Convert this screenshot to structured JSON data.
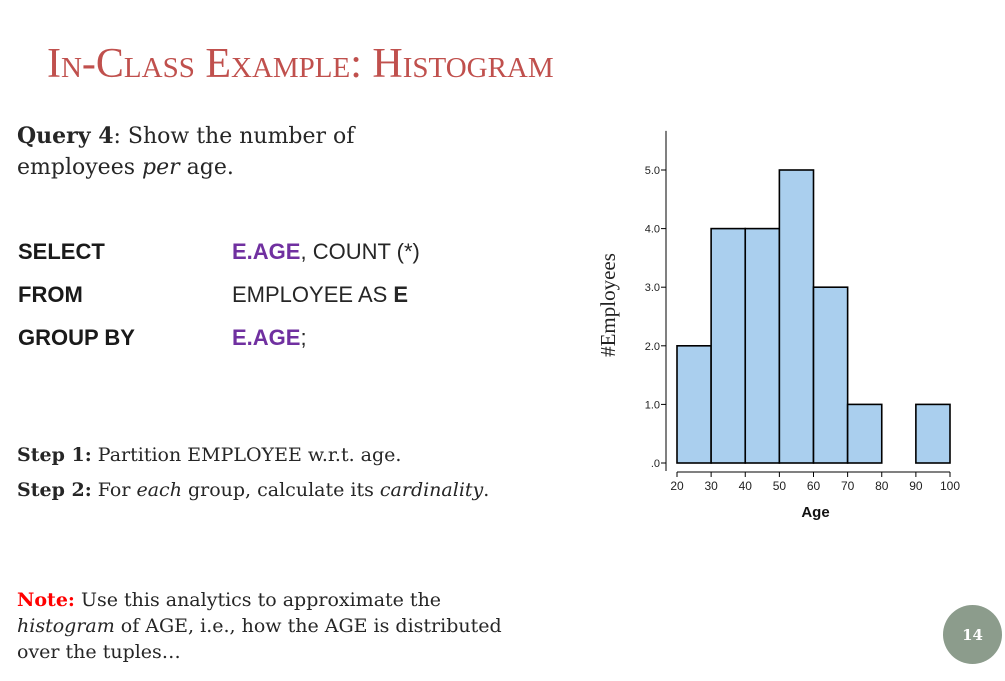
{
  "slide": {
    "title": "In-Class Example: Histogram",
    "query": {
      "label": "Query 4",
      "text_before": ": Show the number of employees ",
      "text_em": "per",
      "text_after": " age."
    },
    "sql": {
      "select_kw": "SELECT",
      "select_attr": "E.AGE",
      "select_rest": ", COUNT (*)",
      "from_kw": "FROM",
      "from_table": "EMPLOYEE AS ",
      "from_alias": "E",
      "group_kw": "GROUP BY",
      "group_attr": "E.AGE",
      "group_end": ";"
    },
    "step1": {
      "label": "Step 1:",
      "text": " Partition EMPLOYEE w.r.t. age."
    },
    "step2": {
      "label": "Step 2:",
      "text_before": " For ",
      "text_em1": "each",
      "text_mid": " group, calculate its ",
      "text_em2": "cardinality",
      "text_after": "."
    },
    "note": {
      "label": "Note:",
      "text_before": " Use this analytics to approximate the ",
      "text_em": "histogram",
      "text_after": " of AGE, i.e., how the AGE is distributed over the tuples…"
    },
    "page_number": "14"
  },
  "chart_data": {
    "type": "bar",
    "bins": [
      [
        20,
        30
      ],
      [
        30,
        40
      ],
      [
        40,
        50
      ],
      [
        50,
        60
      ],
      [
        60,
        70
      ],
      [
        70,
        80
      ],
      [
        80,
        90
      ],
      [
        90,
        100
      ]
    ],
    "values": [
      2,
      4,
      4,
      5,
      3,
      1,
      0,
      1
    ],
    "x_ticks": [
      "20",
      "30",
      "40",
      "50",
      "60",
      "70",
      "80",
      "90",
      "100"
    ],
    "y_ticks": [
      ".0",
      "1.0",
      "2.0",
      "3.0",
      "4.0",
      "5.0"
    ],
    "y_tick_values": [
      0,
      1,
      2,
      3,
      4,
      5
    ],
    "xlabel": "Age",
    "ylabel": "#Employees",
    "xlim": [
      20,
      100
    ],
    "ylim": [
      0,
      5.6
    ],
    "bar_color": "#aacfee",
    "edge_color": "#000000",
    "grid": false
  }
}
